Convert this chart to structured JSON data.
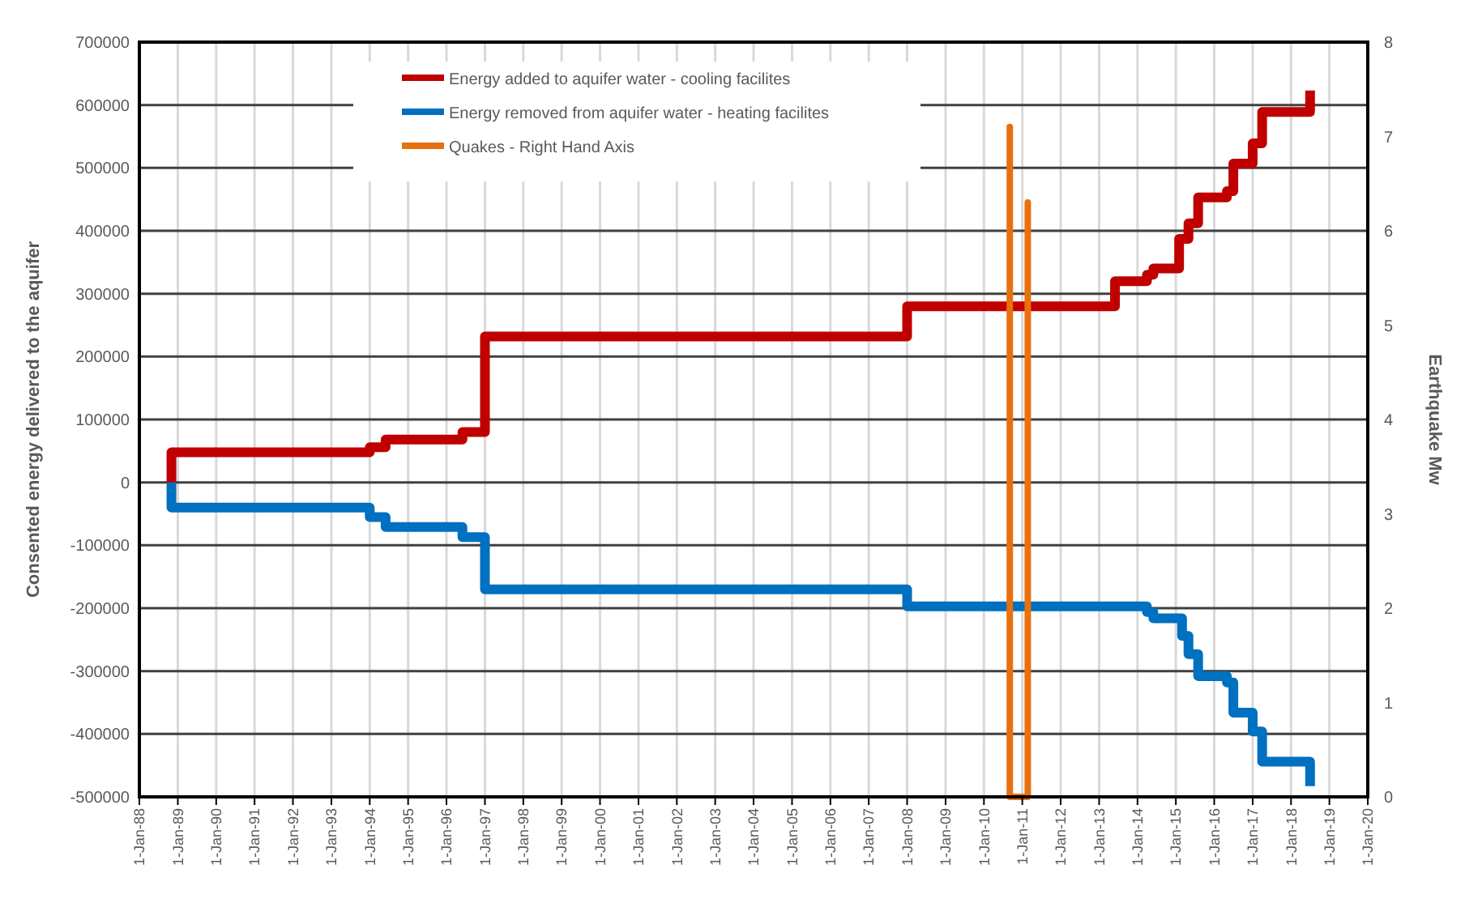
{
  "chart_data": {
    "type": "step",
    "ylabel": "Consented energy delivered to the aquifer",
    "y2label": "Earthquake Mw",
    "series": [
      {
        "name": "Energy added to aquifer water - cooling facilites",
        "color": "#c00000",
        "x": [
          "1988-11",
          "1988-11",
          "1994-01",
          "1994-06",
          "1996-06",
          "1997-01",
          "2008-01",
          "2013-06",
          "2014-04",
          "2014-06",
          "2015-02",
          "2015-05",
          "2015-08",
          "2016-05",
          "2016-07",
          "2017-01",
          "2017-04",
          "2018-07",
          "2018-07"
        ],
        "values": [
          0,
          48000,
          56000,
          68000,
          80000,
          232000,
          280000,
          320000,
          330000,
          340000,
          387000,
          412000,
          453000,
          463000,
          507000,
          539000,
          589000,
          589000,
          623000
        ]
      },
      {
        "name": "Energy removed from aquifer water - heating facilites",
        "color": "#0070c0",
        "x": [
          "1988-11",
          "1988-11",
          "1994-01",
          "1994-06",
          "1996-06",
          "1997-01",
          "2008-01",
          "2014-04",
          "2014-06",
          "2015-03",
          "2015-05",
          "2015-08",
          "2016-05",
          "2016-07",
          "2017-01",
          "2017-04",
          "2018-07",
          "2018-07"
        ],
        "values": [
          0,
          -40000,
          -55000,
          -71000,
          -87000,
          -170000,
          -197000,
          -206000,
          -216000,
          -244000,
          -273000,
          -308000,
          -318000,
          -366000,
          -396000,
          -444000,
          -444000,
          -483000
        ]
      },
      {
        "name": "Quakes - Right Hand Axis",
        "type": "line",
        "axis": "y2",
        "color": "#e8700f",
        "x": [
          "2010-09-04",
          "2010-09-04",
          "2010-09-04",
          "2011-02-22",
          "2011-02-22",
          "2011-02-22"
        ],
        "values": [
          0,
          7.1,
          0,
          0,
          6.3,
          0
        ]
      }
    ],
    "xlim": [
      "1988-01-01",
      "2020-01-01"
    ],
    "xticks": [
      {
        "value": "1988-01-01",
        "label": "1-Jan-88"
      },
      {
        "value": "1989-01-01",
        "label": "1-Jan-89"
      },
      {
        "value": "1990-01-01",
        "label": "1-Jan-90"
      },
      {
        "value": "1991-01-01",
        "label": "1-Jan-91"
      },
      {
        "value": "1992-01-01",
        "label": "1-Jan-92"
      },
      {
        "value": "1993-01-01",
        "label": "1-Jan-93"
      },
      {
        "value": "1994-01-01",
        "label": "1-Jan-94"
      },
      {
        "value": "1995-01-01",
        "label": "1-Jan-95"
      },
      {
        "value": "1996-01-01",
        "label": "1-Jan-96"
      },
      {
        "value": "1997-01-01",
        "label": "1-Jan-97"
      },
      {
        "value": "1998-01-01",
        "label": "1-Jan-98"
      },
      {
        "value": "1999-01-01",
        "label": "1-Jan-99"
      },
      {
        "value": "2000-01-01",
        "label": "1-Jan-00"
      },
      {
        "value": "2001-01-01",
        "label": "1-Jan-01"
      },
      {
        "value": "2002-01-01",
        "label": "1-Jan-02"
      },
      {
        "value": "2003-01-01",
        "label": "1-Jan-03"
      },
      {
        "value": "2004-01-01",
        "label": "1-Jan-04"
      },
      {
        "value": "2005-01-01",
        "label": "1-Jan-05"
      },
      {
        "value": "2006-01-01",
        "label": "1-Jan-06"
      },
      {
        "value": "2007-01-01",
        "label": "1-Jan-07"
      },
      {
        "value": "2008-01-01",
        "label": "1-Jan-08"
      },
      {
        "value": "2009-01-01",
        "label": "1-Jan-09"
      },
      {
        "value": "2010-01-01",
        "label": "1-Jan-10"
      },
      {
        "value": "2011-01-01",
        "label": "1-Jan-11"
      },
      {
        "value": "2012-01-01",
        "label": "1-Jan-12"
      },
      {
        "value": "2013-01-01",
        "label": "1-Jan-13"
      },
      {
        "value": "2014-01-01",
        "label": "1-Jan-14"
      },
      {
        "value": "2015-01-01",
        "label": "1-Jan-15"
      },
      {
        "value": "2016-01-01",
        "label": "1-Jan-16"
      },
      {
        "value": "2017-01-01",
        "label": "1-Jan-17"
      },
      {
        "value": "2018-01-01",
        "label": "1-Jan-18"
      },
      {
        "value": "2019-01-01",
        "label": "1-Jan-19"
      },
      {
        "value": "2020-01-01",
        "label": "1-Jan-20"
      }
    ],
    "ylim": [
      -500000,
      700000
    ],
    "yticks": [
      -500000,
      -400000,
      -300000,
      -200000,
      -100000,
      0,
      100000,
      200000,
      300000,
      400000,
      500000,
      600000,
      700000
    ],
    "y2lim": [
      0,
      8
    ],
    "y2ticks": [
      0,
      1,
      2,
      3,
      4,
      5,
      6,
      7,
      8
    ],
    "grid": true,
    "legend": "top",
    "line_style": "solid"
  }
}
